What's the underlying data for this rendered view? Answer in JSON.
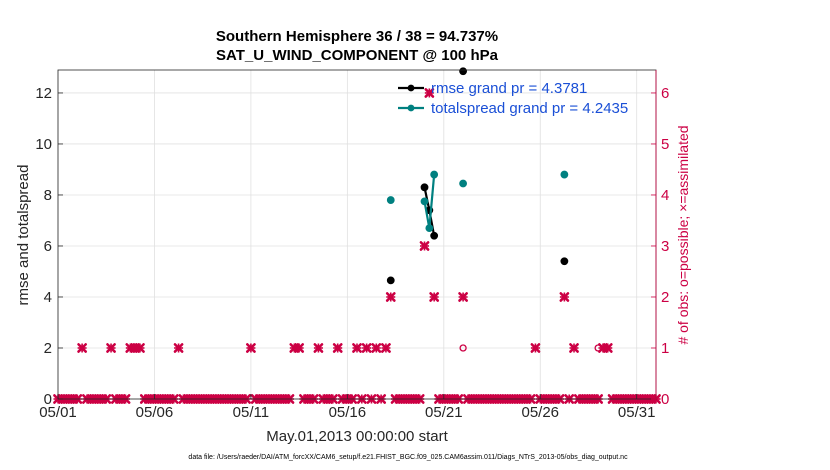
{
  "chart_data": {
    "type": "line",
    "title_line1": "Southern Hemisphere 36 / 38 = 94.737%",
    "title_line2": "SAT_U_WIND_COMPONENT @ 100 hPa",
    "xlabel": "May.01,2013 00:00:00 start",
    "ylabel_left": "rmse and totalspread",
    "ylabel_right": "# of obs: o=possible; ×=assimilated",
    "x_ticks": [
      "05/01",
      "05/06",
      "05/11",
      "05/16",
      "05/21",
      "05/26",
      "05/31"
    ],
    "x_tick_days": [
      1,
      6,
      11,
      16,
      21,
      26,
      31
    ],
    "xlim": [
      1,
      32
    ],
    "y_left_ticks": [
      "0",
      "2",
      "4",
      "6",
      "8",
      "10",
      "12"
    ],
    "ylim_left": [
      0,
      12.9
    ],
    "y_right_ticks": [
      "0",
      "1",
      "2",
      "3",
      "4",
      "5",
      "6"
    ],
    "ylim_right": [
      0,
      6.45
    ],
    "footnote": "data file: /Users/raeder/DAI/ATM_forcXX/CAM6_setup/f.e21.FHIST_BGC.f09_025.CAM6assim.011/Diags_NTrS_2013-05/obs_diag_output.nc",
    "legend_position": "top-right",
    "series": [
      {
        "name": "rmse grand pr = 4.3781",
        "color": "#000000",
        "segments": [
          [
            [
              18.25,
              4.65
            ]
          ],
          [
            [
              20.0,
              8.3
            ],
            [
              20.25,
              7.4
            ],
            [
              20.5,
              6.4
            ]
          ],
          [
            [
              22.0,
              12.85
            ]
          ],
          [
            [
              27.25,
              5.4
            ]
          ]
        ]
      },
      {
        "name": "totalspread grand pr = 4.2435",
        "color": "#008080",
        "segments": [
          [
            [
              18.25,
              7.8
            ]
          ],
          [
            [
              20.0,
              7.75
            ],
            [
              20.25,
              6.7
            ],
            [
              20.5,
              8.8
            ]
          ],
          [
            [
              22.0,
              8.45
            ]
          ],
          [
            [
              27.25,
              8.8
            ]
          ]
        ]
      }
    ],
    "obs_assimilated": {
      "color": "#cc0044",
      "nonzero": [
        [
          2.25,
          1
        ],
        [
          3.75,
          1
        ],
        [
          4.75,
          1
        ],
        [
          5.0,
          1
        ],
        [
          5.25,
          1
        ],
        [
          7.25,
          1
        ],
        [
          11.0,
          1
        ],
        [
          13.25,
          1
        ],
        [
          13.5,
          1
        ],
        [
          14.5,
          1
        ],
        [
          15.5,
          1
        ],
        [
          16.5,
          1
        ],
        [
          17.0,
          1
        ],
        [
          17.5,
          1
        ],
        [
          18.0,
          1
        ],
        [
          18.25,
          2
        ],
        [
          20.0,
          3
        ],
        [
          20.25,
          6
        ],
        [
          20.5,
          2
        ],
        [
          22.0,
          2
        ],
        [
          25.75,
          1
        ],
        [
          27.25,
          2
        ],
        [
          27.75,
          1
        ],
        [
          29.25,
          1
        ],
        [
          29.5,
          1
        ]
      ],
      "zero_days_from": 1.0,
      "zero_days_to": 32.0,
      "zero_step": 0.25
    },
    "obs_possible": {
      "color": "#cc0044",
      "points": [
        [
          22.0,
          1
        ],
        [
          29.0,
          1
        ]
      ]
    }
  }
}
